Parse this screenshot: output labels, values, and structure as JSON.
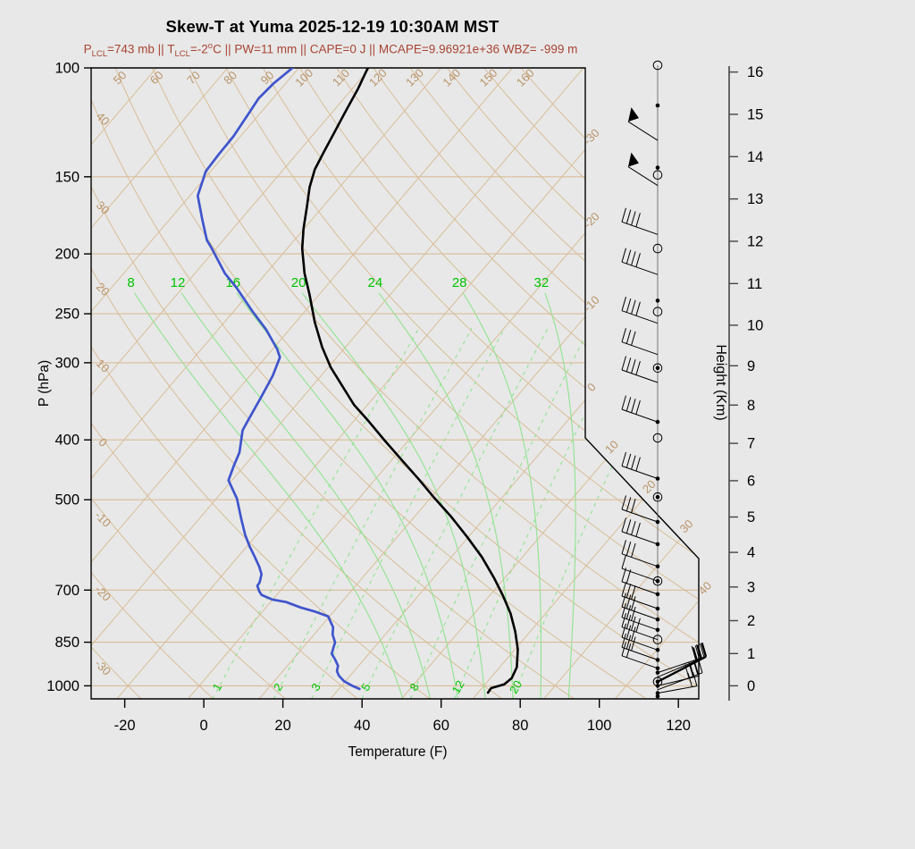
{
  "title": "Skew-T at Yuma 2025-12-19 10:30AM MST",
  "subtitle": {
    "plain": "PLCL=743 mb || TLCL=-2oC || PW=11 mm || CAPE=0 J || MCAPE=9.96921e+36 WBZ= -999 m",
    "parts": [
      {
        "t": "P"
      },
      {
        "sub": "LCL"
      },
      {
        "t": "=743 mb || T"
      },
      {
        "sub": "LCL"
      },
      {
        "t": "=-2"
      },
      {
        "sup": "o"
      },
      {
        "t": "C || PW=11 mm || CAPE=0 J || MCAPE=9.96921e+36 WBZ= -999 m"
      }
    ]
  },
  "axes": {
    "x": {
      "label": "Temperature (F)",
      "ticks": [
        -20,
        0,
        20,
        40,
        60,
        80,
        100,
        120
      ]
    },
    "pressure": {
      "label": "P (hPa)",
      "ticks": [
        100,
        150,
        200,
        250,
        300,
        400,
        500,
        700,
        850,
        1000
      ]
    },
    "height": {
      "label": "Height (Km)",
      "ticks": [
        0,
        1,
        2,
        3,
        4,
        5,
        6,
        7,
        8,
        9,
        10,
        11,
        12,
        13,
        14,
        15,
        16
      ]
    }
  },
  "chart_data": {
    "type": "line",
    "description": "Skew-T log-P thermodynamic diagram with temperature and dewpoint soundings plus wind barbs",
    "isotherms_c": [
      -110,
      -100,
      -90,
      -80,
      -70,
      -60,
      -50,
      -40,
      -30,
      -20,
      -10,
      0,
      10,
      20,
      30,
      40
    ],
    "isotherm_edge_labels_c": [
      -30,
      -20,
      -10,
      0,
      10,
      20,
      30,
      40
    ],
    "dry_adiabats_c": [
      -30,
      -20,
      -10,
      0,
      10,
      20,
      30,
      40,
      50,
      60,
      70,
      80,
      90,
      100,
      110,
      120,
      130,
      140,
      150,
      160
    ],
    "dry_adiabat_top_labels_c": [
      50,
      60,
      70,
      80,
      90,
      100,
      110,
      120,
      130,
      140,
      150,
      160
    ],
    "dry_adiabat_left_labels_c": [
      40,
      30,
      20,
      10,
      0,
      -10,
      -20,
      -30
    ],
    "moist_adiabats_c": [
      8,
      12,
      16,
      20,
      24,
      28,
      32
    ],
    "mixing_ratio_g_kg": [
      1,
      2,
      3,
      5,
      8,
      12,
      20
    ],
    "temperature_trace_p_t": [
      [
        100,
        -70.3
      ],
      [
        108,
        -69.2
      ],
      [
        117,
        -68.3
      ],
      [
        127,
        -67.3
      ],
      [
        137,
        -66.4
      ],
      [
        146,
        -65.6
      ],
      [
        156,
        -64.2
      ],
      [
        168,
        -62.2
      ],
      [
        182,
        -60.1
      ],
      [
        196,
        -57.9
      ],
      [
        215,
        -54.6
      ],
      [
        233,
        -51.3
      ],
      [
        258,
        -47.3
      ],
      [
        283,
        -43.3
      ],
      [
        305,
        -39.7
      ],
      [
        326,
        -36.0
      ],
      [
        351,
        -31.9
      ],
      [
        373,
        -27.9
      ],
      [
        401,
        -23.3
      ],
      [
        433,
        -18.3
      ],
      [
        463,
        -13.9
      ],
      [
        497,
        -9.4
      ],
      [
        533,
        -4.8
      ],
      [
        575,
        -0.1
      ],
      [
        619,
        4.3
      ],
      [
        669,
        8.5
      ],
      [
        715,
        11.9
      ],
      [
        764,
        15.1
      ],
      [
        817,
        17.9
      ],
      [
        873,
        20.4
      ],
      [
        933,
        22.4
      ],
      [
        972,
        23.0
      ],
      [
        995,
        22.7
      ],
      [
        1009,
        21.3
      ],
      [
        1026,
        21.4
      ]
    ],
    "dewpoint_trace_p_t": [
      [
        100,
        -80.9
      ],
      [
        106,
        -81.7
      ],
      [
        112,
        -82.0
      ],
      [
        120,
        -81.5
      ],
      [
        129,
        -81.0
      ],
      [
        138,
        -80.9
      ],
      [
        147,
        -80.7
      ],
      [
        161,
        -78.9
      ],
      [
        176,
        -75.4
      ],
      [
        190,
        -72.3
      ],
      [
        196,
        -70.6
      ],
      [
        215,
        -65.8
      ],
      [
        227,
        -62.4
      ],
      [
        248,
        -57.3
      ],
      [
        265,
        -53.3
      ],
      [
        285,
        -49.4
      ],
      [
        294,
        -48.0
      ],
      [
        315,
        -46.8
      ],
      [
        340,
        -45.9
      ],
      [
        373,
        -44.9
      ],
      [
        386,
        -44.5
      ],
      [
        419,
        -42.3
      ],
      [
        440,
        -41.5
      ],
      [
        465,
        -40.5
      ],
      [
        498,
        -37.1
      ],
      [
        538,
        -34.0
      ],
      [
        570,
        -31.6
      ],
      [
        595,
        -29.6
      ],
      [
        619,
        -27.6
      ],
      [
        642,
        -25.8
      ],
      [
        660,
        -24.6
      ],
      [
        680,
        -23.9
      ],
      [
        689,
        -23.8
      ],
      [
        703,
        -22.9
      ],
      [
        713,
        -22.1
      ],
      [
        725,
        -20.1
      ],
      [
        732,
        -17.8
      ],
      [
        747,
        -15.1
      ],
      [
        759,
        -12.5
      ],
      [
        772,
        -10.2
      ],
      [
        804,
        -8.2
      ],
      [
        826,
        -7.4
      ],
      [
        851,
        -6.1
      ],
      [
        868,
        -5.7
      ],
      [
        888,
        -5.2
      ],
      [
        906,
        -4.1
      ],
      [
        928,
        -2.9
      ],
      [
        947,
        -2.4
      ],
      [
        963,
        -1.6
      ],
      [
        983,
        -0.2
      ],
      [
        999,
        1.4
      ],
      [
        1012,
        2.9
      ]
    ],
    "wind_levels": [
      {
        "p": 99,
        "marker": "circle"
      },
      {
        "p": 115,
        "marker": "dot"
      },
      {
        "p": 131,
        "dir": "ul",
        "flag": true
      },
      {
        "p": 145,
        "marker": "dot"
      },
      {
        "p": 149,
        "marker": "circle"
      },
      {
        "p": 155,
        "dir": "ul",
        "flag": true
      },
      {
        "p": 186,
        "dir": "ul",
        "barbs": 4
      },
      {
        "p": 196,
        "marker": "circle"
      },
      {
        "p": 216,
        "dir": "ul",
        "barbs": 4
      },
      {
        "p": 238,
        "marker": "dot"
      },
      {
        "p": 248,
        "marker": "circle"
      },
      {
        "p": 259,
        "dir": "ul",
        "barbs": 4
      },
      {
        "p": 291,
        "dir": "ul",
        "barbs": 3
      },
      {
        "p": 306,
        "marker": "circle-dot"
      },
      {
        "p": 323,
        "dir": "ul",
        "barbs": 4
      },
      {
        "p": 374,
        "marker": "dot",
        "dir": "ul",
        "barbs": 4
      },
      {
        "p": 397,
        "marker": "circle"
      },
      {
        "p": 462,
        "marker": "dot",
        "dir": "ul",
        "barbs": 4
      },
      {
        "p": 495,
        "marker": "circle-dot"
      },
      {
        "p": 543,
        "marker": "dot",
        "dir": "ul",
        "barbs": 3
      },
      {
        "p": 590,
        "marker": "dot",
        "dir": "ul",
        "barbs": 4
      },
      {
        "p": 641,
        "marker": "dot",
        "dir": "ul",
        "barbs": 3
      },
      {
        "p": 677,
        "marker": "circle-dot",
        "dir": "ul",
        "barbs": 1
      },
      {
        "p": 711,
        "marker": "dot",
        "dir": "ul",
        "barbs": 2
      },
      {
        "p": 750,
        "marker": "dot",
        "dir": "ul",
        "barbs": 3
      },
      {
        "p": 781,
        "marker": "dot",
        "dir": "ul",
        "barbs": 3
      },
      {
        "p": 812,
        "marker": "dot",
        "dir": "ul",
        "barbs": 3
      },
      {
        "p": 842,
        "marker": "circle",
        "dir": "ul",
        "barbs": 4
      },
      {
        "p": 875,
        "marker": "dot",
        "dir": "ul",
        "barbs": 3
      },
      {
        "p": 908,
        "marker": "dot",
        "dir": "ul",
        "barbs": 3
      },
      {
        "p": 937,
        "marker": "dot",
        "dir": "ul",
        "barbs": 2
      },
      {
        "p": 952,
        "marker": "dot",
        "dir": "ur",
        "barbs": 2
      },
      {
        "p": 968,
        "dir": "ur",
        "barbs": 2
      },
      {
        "p": 985,
        "marker": "circle-dot",
        "dir": "ur",
        "barbs": 3,
        "bold": true
      },
      {
        "p": 1000,
        "marker": "dot",
        "dir": "ur",
        "barbs": 3
      },
      {
        "p": 1015,
        "dir": "ur",
        "barbs": 3
      },
      {
        "p": 1028,
        "marker": "dot",
        "dir": "ur",
        "barbs": 2
      },
      {
        "p": 1040,
        "marker": "dot"
      }
    ]
  },
  "colors": {
    "background": "#e8e8e8",
    "grid_tan": "#d9bd97",
    "grid_label_tan": "#b9946a",
    "green_line": "#8fe38f",
    "green_label": "#00c400",
    "temperature": "#000000",
    "dewpoint": "#3f55cc",
    "subtitle": "#a84432",
    "axis": "#000000",
    "height_axis": "#454545"
  }
}
